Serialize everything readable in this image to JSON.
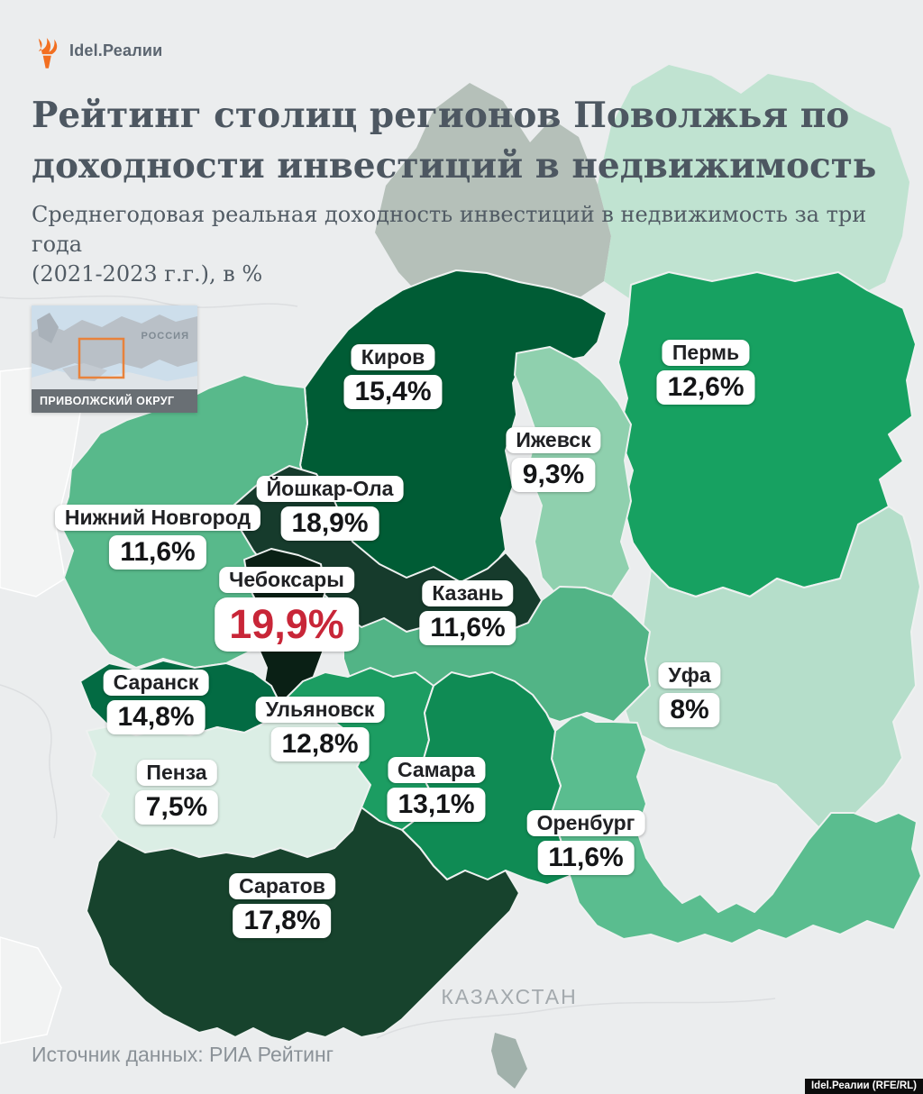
{
  "page": {
    "background": "#ebedee"
  },
  "header": {
    "logo_text": "Idel.Реалии",
    "logo_flame_color": "#f26f21",
    "title_line1": "Рейтинг столиц регионов Поволжья по",
    "title_line2": "доходности инвестиций в недвижимость",
    "subtitle_line1": "Среднегодовая реальная доходность инвестиций в недвижимость за три года",
    "subtitle_line2": "(2021-2023 г.г.), в %"
  },
  "inset": {
    "country_label": "РОССИЯ",
    "district_label": "ПРИВОЛЖСКИЙ ОКРУГ",
    "highlight_color": "#e8823b"
  },
  "map": {
    "neighbor_label": "КАЗАХСТАН",
    "highlight_value_color": "#c82638",
    "regions": [
      {
        "id": "kirov",
        "city": "Киров",
        "value": "15,4%",
        "color": "#005c35"
      },
      {
        "id": "perm",
        "city": "Пермь",
        "value": "12,6%",
        "color": "#17a161"
      },
      {
        "id": "izhevsk",
        "city": "Ижевск",
        "value": "9,3%",
        "color": "#8fd0ae"
      },
      {
        "id": "yoshkar_ola",
        "city": "Йошкар-Ола",
        "value": "18,9%",
        "color": "#163b2c"
      },
      {
        "id": "nizhny_novgorod",
        "city": "Нижний Новгород",
        "value": "11,6%",
        "color": "#58b98b"
      },
      {
        "id": "cheboksary",
        "city": "Чебоксары",
        "value": "19,9%",
        "color": "#0a2015",
        "highlight": true
      },
      {
        "id": "kazan",
        "city": "Казань",
        "value": "11,6%",
        "color": "#52b486"
      },
      {
        "id": "ufa",
        "city": "Уфа",
        "value": "8%",
        "color": "#b5deca"
      },
      {
        "id": "saransk",
        "city": "Саранск",
        "value": "14,8%",
        "color": "#036b43"
      },
      {
        "id": "ulyanovsk",
        "city": "Ульяновск",
        "value": "12,8%",
        "color": "#1c9d62"
      },
      {
        "id": "penza",
        "city": "Пенза",
        "value": "7,5%",
        "color": "#dbeee5"
      },
      {
        "id": "samara",
        "city": "Самара",
        "value": "13,1%",
        "color": "#0f8b54"
      },
      {
        "id": "orenburg",
        "city": "Оренбург",
        "value": "11,6%",
        "color": "#5abd8f"
      },
      {
        "id": "saratov",
        "city": "Саратов",
        "value": "17,8%",
        "color": "#17432d"
      }
    ]
  },
  "footer": {
    "source": "Источник данных: РИА Рейтинг",
    "credit": "Idel.Реалии (RFE/RL)"
  }
}
